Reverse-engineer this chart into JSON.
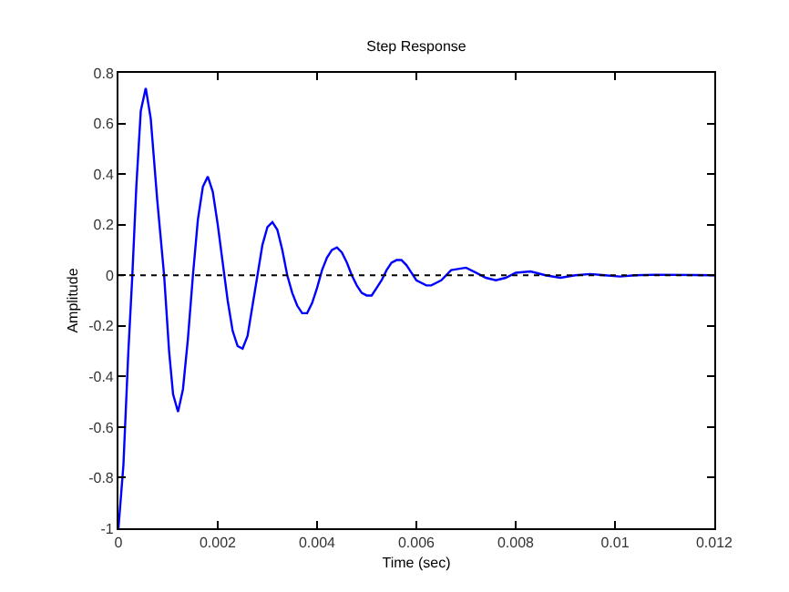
{
  "chart_data": {
    "type": "line",
    "title": "Step Response",
    "xlabel": "Time (sec)",
    "ylabel": "Amplitude",
    "x": [
      0,
      0.0001,
      0.0002,
      0.00028,
      0.00036,
      0.00045,
      0.00055,
      0.00065,
      0.00078,
      0.00092,
      0.00102,
      0.0011,
      0.0012,
      0.0013,
      0.0014,
      0.0015,
      0.0016,
      0.0017,
      0.0018,
      0.0019,
      0.002,
      0.0021,
      0.0022,
      0.0023,
      0.0024,
      0.0025,
      0.0026,
      0.0027,
      0.0028,
      0.0029,
      0.003,
      0.0031,
      0.0032,
      0.0033,
      0.0034,
      0.0035,
      0.0036,
      0.0037,
      0.0038,
      0.0039,
      0.004,
      0.0041,
      0.0042,
      0.0043,
      0.0044,
      0.0045,
      0.0046,
      0.0047,
      0.0048,
      0.0049,
      0.005,
      0.0051,
      0.0052,
      0.0053,
      0.0054,
      0.0055,
      0.0056,
      0.0057,
      0.0058,
      0.0059,
      0.006,
      0.0062,
      0.0063,
      0.0065,
      0.0067,
      0.007,
      0.0072,
      0.0074,
      0.0076,
      0.0078,
      0.008,
      0.0083,
      0.0086,
      0.0089,
      0.0092,
      0.0095,
      0.0098,
      0.0101,
      0.0104,
      0.0108,
      0.012
    ],
    "series": [
      {
        "color": "#0000ff",
        "values": [
          -1,
          -0.75,
          -0.3,
          0,
          0.35,
          0.65,
          0.74,
          0.62,
          0.3,
          0,
          -0.3,
          -0.47,
          -0.54,
          -0.45,
          -0.25,
          0,
          0.22,
          0.35,
          0.39,
          0.33,
          0.2,
          0.05,
          -0.1,
          -0.22,
          -0.28,
          -0.29,
          -0.24,
          -0.12,
          0,
          0.12,
          0.19,
          0.21,
          0.18,
          0.1,
          0,
          -0.07,
          -0.12,
          -0.15,
          -0.15,
          -0.11,
          -0.05,
          0.02,
          0.07,
          0.1,
          0.11,
          0.09,
          0.05,
          0,
          -0.04,
          -0.07,
          -0.08,
          -0.08,
          -0.05,
          -0.02,
          0.02,
          0.05,
          0.06,
          0.06,
          0.04,
          0.01,
          -0.02,
          -0.04,
          -0.04,
          -0.02,
          0.02,
          0.03,
          0.01,
          -0.01,
          -0.02,
          -0.01,
          0.01,
          0.015,
          0,
          -0.01,
          0,
          0.005,
          0,
          -0.005,
          0,
          0.002,
          0
        ]
      }
    ],
    "xlim": [
      0,
      0.012
    ],
    "xticks": [
      0,
      0.002,
      0.004,
      0.006,
      0.008,
      0.01,
      0.012
    ],
    "ylim": [
      -1,
      0.8
    ],
    "yticks": [
      -1,
      -0.8,
      -0.6,
      -0.4,
      -0.2,
      0,
      0.2,
      0.4,
      0.6,
      0.8
    ],
    "ref_lines": [
      {
        "axis": "y",
        "value": 0,
        "color": "#000000",
        "line_style": "dotted"
      }
    ],
    "line_style": "solid",
    "marker": "none"
  }
}
